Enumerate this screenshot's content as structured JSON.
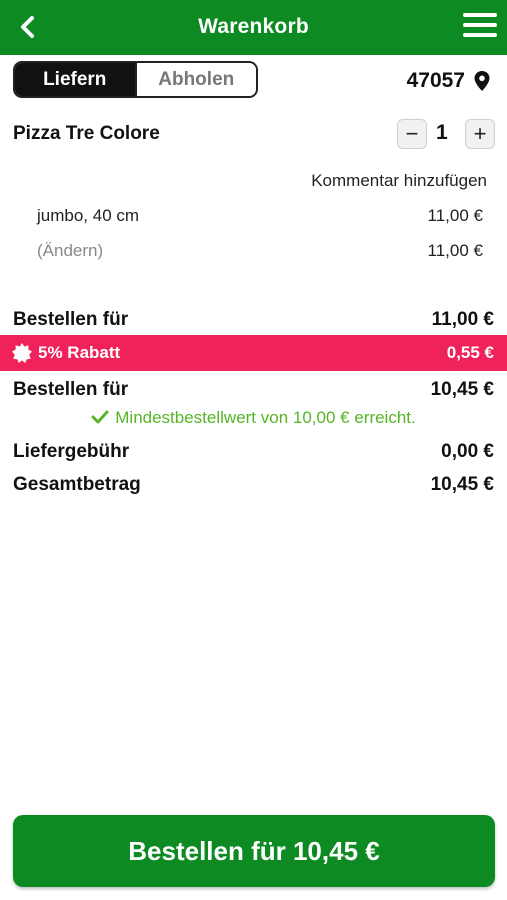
{
  "header": {
    "title": "Warenkorb",
    "back_icon": "chevron-left-icon",
    "menu_icon": "hamburger-menu-icon"
  },
  "colors": {
    "brand_green": "#0d8a22",
    "discount_pink": "#f0225a",
    "success_green": "#56b526"
  },
  "delivery_toggle": {
    "deliver_label": "Liefern",
    "pickup_label": "Abholen",
    "selected": "Liefern"
  },
  "location": {
    "zip": "47057",
    "icon": "location-pin-icon"
  },
  "cart": {
    "items": [
      {
        "name": "Pizza Tre Colore",
        "quantity": "1",
        "minus_label": "−",
        "plus_label": "+",
        "comment_label": "Kommentar hinzufügen",
        "variant": "jumbo, 40 cm",
        "variant_price": "11,00 €",
        "change_label": "(Ändern)",
        "item_total": "11,00 €"
      }
    ]
  },
  "summary": {
    "order_for_label": "Bestellen für",
    "subtotal": "11,00 €",
    "discount_label": "5% Rabatt",
    "discount_value": "0,55 €",
    "order_for_after_label": "Bestellen für",
    "after_discount": "10,45 €",
    "min_order_message": "Mindestbestellwert von 10,00 € erreicht.",
    "delivery_fee_label": "Liefergebühr",
    "delivery_fee": "0,00 €",
    "total_label": "Gesamtbetrag",
    "total": "10,45 €"
  },
  "checkout_button": {
    "label": "Bestellen für 10,45 €"
  }
}
